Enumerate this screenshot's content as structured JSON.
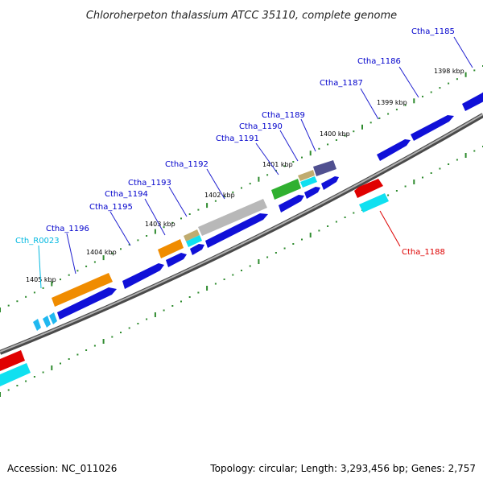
{
  "title": "Chloroherpeton thalassium ATCC 35110, complete genome",
  "footer": {
    "accession": "Accession: NC_011026",
    "summary": "Topology: circular; Length: 3,293,456 bp; Genes: 2,757"
  },
  "colors": {
    "backbone": "#8a8a8a",
    "tick": "#2e8b2e",
    "leader": "#2020d0",
    "cds_blue": "#1010d8",
    "orange": "#f08c00",
    "red": "#e00000",
    "cyan": "#10e0f0",
    "green": "#30b030",
    "khaki": "#c0ac70",
    "slate": "#505090",
    "grey": "#b8b8b8",
    "label_blue": "#0000cc",
    "label_cyan": "#00b8e0",
    "label_red": "#dd0000"
  },
  "kbp_labels": [
    "1398 kbp",
    "1399 kbp",
    "1400 kbp",
    "1401 kbp",
    "1402 kbp",
    "1403 kbp",
    "1404 kbp",
    "1405 kbp"
  ],
  "gene_labels": [
    "Ctha_1185",
    "Ctha_1186",
    "Ctha_1187",
    "Ctha_1188",
    "Ctha_1189",
    "Ctha_1190",
    "Ctha_1191",
    "Ctha_1192",
    "Ctha_1193",
    "Ctha_1194",
    "Ctha_1195",
    "Ctha_1196",
    "Cth_R0023"
  ]
}
